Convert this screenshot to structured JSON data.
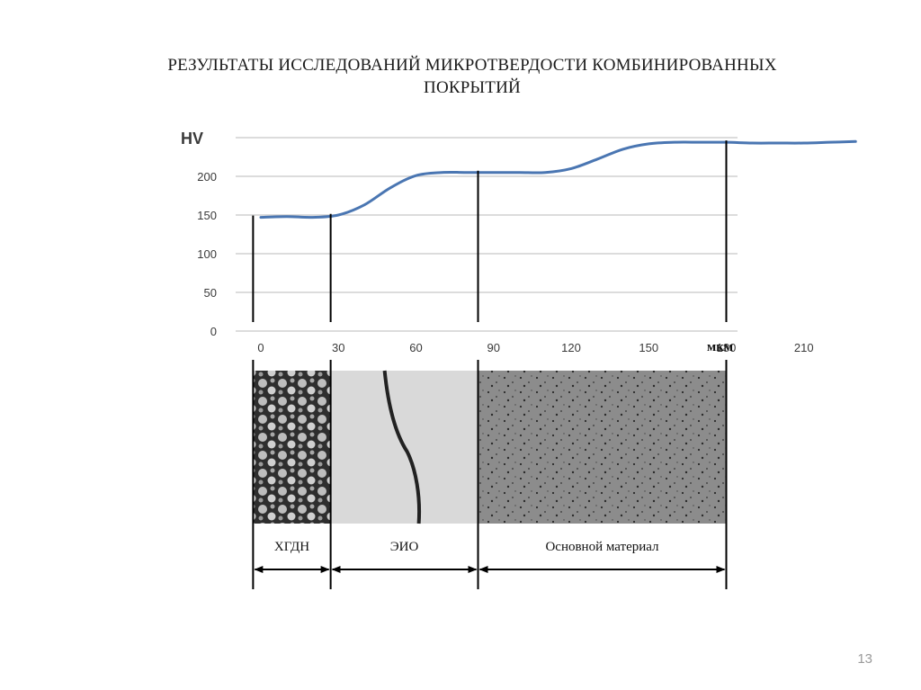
{
  "slide": {
    "title_line1": "РЕЗУЛЬТАТЫ ИССЛЕДОВАНИЙ МИКРОТВЕРДОСТИ КОМБИНИРОВАННЫХ",
    "title_line2": "ПОКРЫТИЙ",
    "page_number": "13"
  },
  "chart_data": {
    "type": "line",
    "ylabel": "HV",
    "xlabel": "мкм",
    "ylim": [
      0,
      250
    ],
    "yticks": [
      0,
      50,
      100,
      150,
      200
    ],
    "xticks": [
      0,
      30,
      60,
      90,
      120,
      150,
      180,
      210
    ],
    "grid": true,
    "line_color": "#4a76b2",
    "series": [
      {
        "x": [
          0,
          10,
          20,
          30,
          40,
          50,
          60,
          70,
          80,
          90,
          100,
          110,
          120,
          130,
          140,
          150,
          160,
          170,
          180,
          190,
          200,
          210,
          220,
          230
        ],
        "values": [
          147,
          148,
          147,
          150,
          163,
          185,
          201,
          205,
          205,
          205,
          205,
          205,
          210,
          222,
          235,
          242,
          244,
          244,
          244,
          243,
          243,
          243,
          244,
          245
        ]
      }
    ],
    "zone_boundaries": [
      -3,
      27,
      84,
      180
    ],
    "zones": [
      {
        "label": "ХГДН",
        "from": -3,
        "to": 27
      },
      {
        "label": "ЭИО",
        "from": 27,
        "to": 84
      },
      {
        "label": "Основной материал",
        "from": 84,
        "to": 180
      }
    ]
  },
  "micrograph": {
    "hgdn_color": "#3c3c3c",
    "eio_color": "#d9d9d9",
    "base_color": "#8c8c8c"
  }
}
